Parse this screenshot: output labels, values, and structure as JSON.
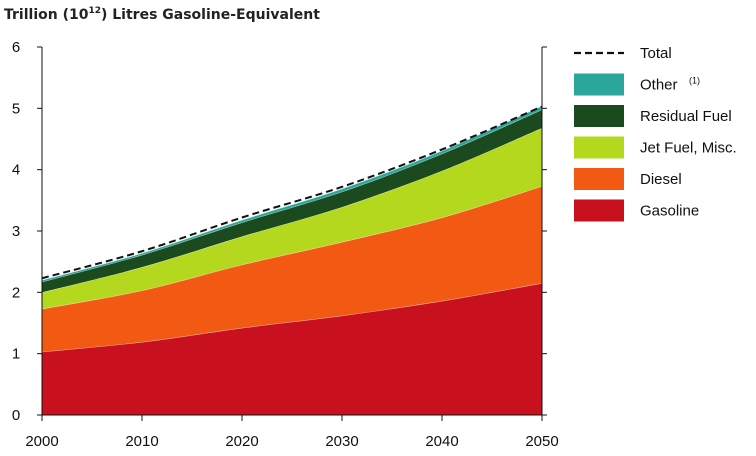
{
  "chart_data": {
    "type": "area",
    "title_prefix": "Trillion (10",
    "title_exponent": "12",
    "title_suffix": ") Litres Gasoline-Equivalent",
    "xlabel": "",
    "ylabel": "",
    "xlim": [
      2000,
      2050
    ],
    "ylim": [
      0,
      6
    ],
    "x_ticks": [
      2000,
      2010,
      2020,
      2030,
      2040,
      2050
    ],
    "y_ticks": [
      0,
      1,
      2,
      3,
      4,
      5,
      6
    ],
    "x": [
      2000,
      2010,
      2020,
      2030,
      2040,
      2050
    ],
    "series": [
      {
        "name": "Gasoline",
        "color": "#c8101e",
        "values": [
          1.03,
          1.19,
          1.42,
          1.62,
          1.86,
          2.15
        ]
      },
      {
        "name": "Diesel",
        "color": "#f25a14",
        "values": [
          0.7,
          0.84,
          1.03,
          1.2,
          1.36,
          1.58
        ]
      },
      {
        "name": "Jet Fuel, Misc.",
        "color": "#b3d81e",
        "values": [
          0.27,
          0.38,
          0.46,
          0.57,
          0.76,
          0.95
        ]
      },
      {
        "name": "Residual Fuel",
        "color": "#1a4a1e",
        "values": [
          0.17,
          0.2,
          0.23,
          0.25,
          0.28,
          0.3
        ]
      },
      {
        "name": "Other",
        "name_superscript": "(1)",
        "color": "#2aa69a",
        "values": [
          0.03,
          0.03,
          0.04,
          0.05,
          0.05,
          0.06
        ]
      }
    ],
    "total": {
      "name": "Total",
      "style": "dashed",
      "color": "#111111",
      "values": [
        2.23,
        2.67,
        3.22,
        3.72,
        4.33,
        5.03
      ]
    },
    "legend": {
      "placement": "right",
      "order": [
        "Total",
        "Other",
        "Residual Fuel",
        "Jet Fuel, Misc.",
        "Diesel",
        "Gasoline"
      ]
    },
    "grid": false
  }
}
